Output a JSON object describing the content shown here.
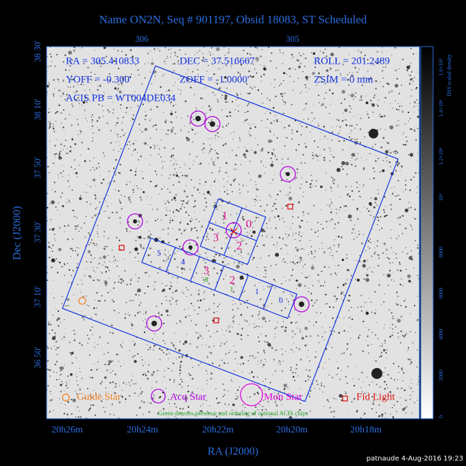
{
  "header": {
    "title": "Name ON2N, Seq # 901197, Obsid 18083, ST Scheduled"
  },
  "axes": {
    "top_ticks": [
      "306",
      "305"
    ],
    "left_ticks": [
      "38 30'",
      "38 10'",
      "37 50'",
      "37 30'",
      "37 10'",
      "36 50'"
    ],
    "bottom_ticks": [
      "20h26m",
      "20h24m",
      "20h22m",
      "20h20m",
      "20h18m"
    ],
    "x_label": "RA (J2000)",
    "y_label": "Dec (J2000)"
  },
  "info": [
    "RA = 305.410833",
    "DEC = 37.516667",
    "ROLL = 201.2489",
    "YOFF = -0.300'",
    "ZOFF = -1.0000'",
    "ZSIM = 0 mm",
    "ACIS PB = WT004DE034"
  ],
  "acis_i_chips": [
    "1",
    "0",
    "3",
    "2"
  ],
  "acis_s_chips": [
    "5",
    "4",
    "3",
    "2",
    "1",
    "0"
  ],
  "optional_chips": [
    "8",
    "1"
  ],
  "legend": [
    "Guide Star",
    "Acq Star",
    "Mon Star",
    "Fid Light"
  ],
  "note": "Green denotes presence and ordering of optional ACIS chips",
  "colorbar": {
    "label": "DSS scaled density",
    "ticks": [
      "0",
      "2000",
      "4000",
      "6000",
      "8000",
      "10⁴",
      "1.2×10⁴",
      "1.4×10⁴",
      "1.6×10⁴"
    ]
  },
  "footer": "patnaude  4-Aug-2016 19:23"
}
